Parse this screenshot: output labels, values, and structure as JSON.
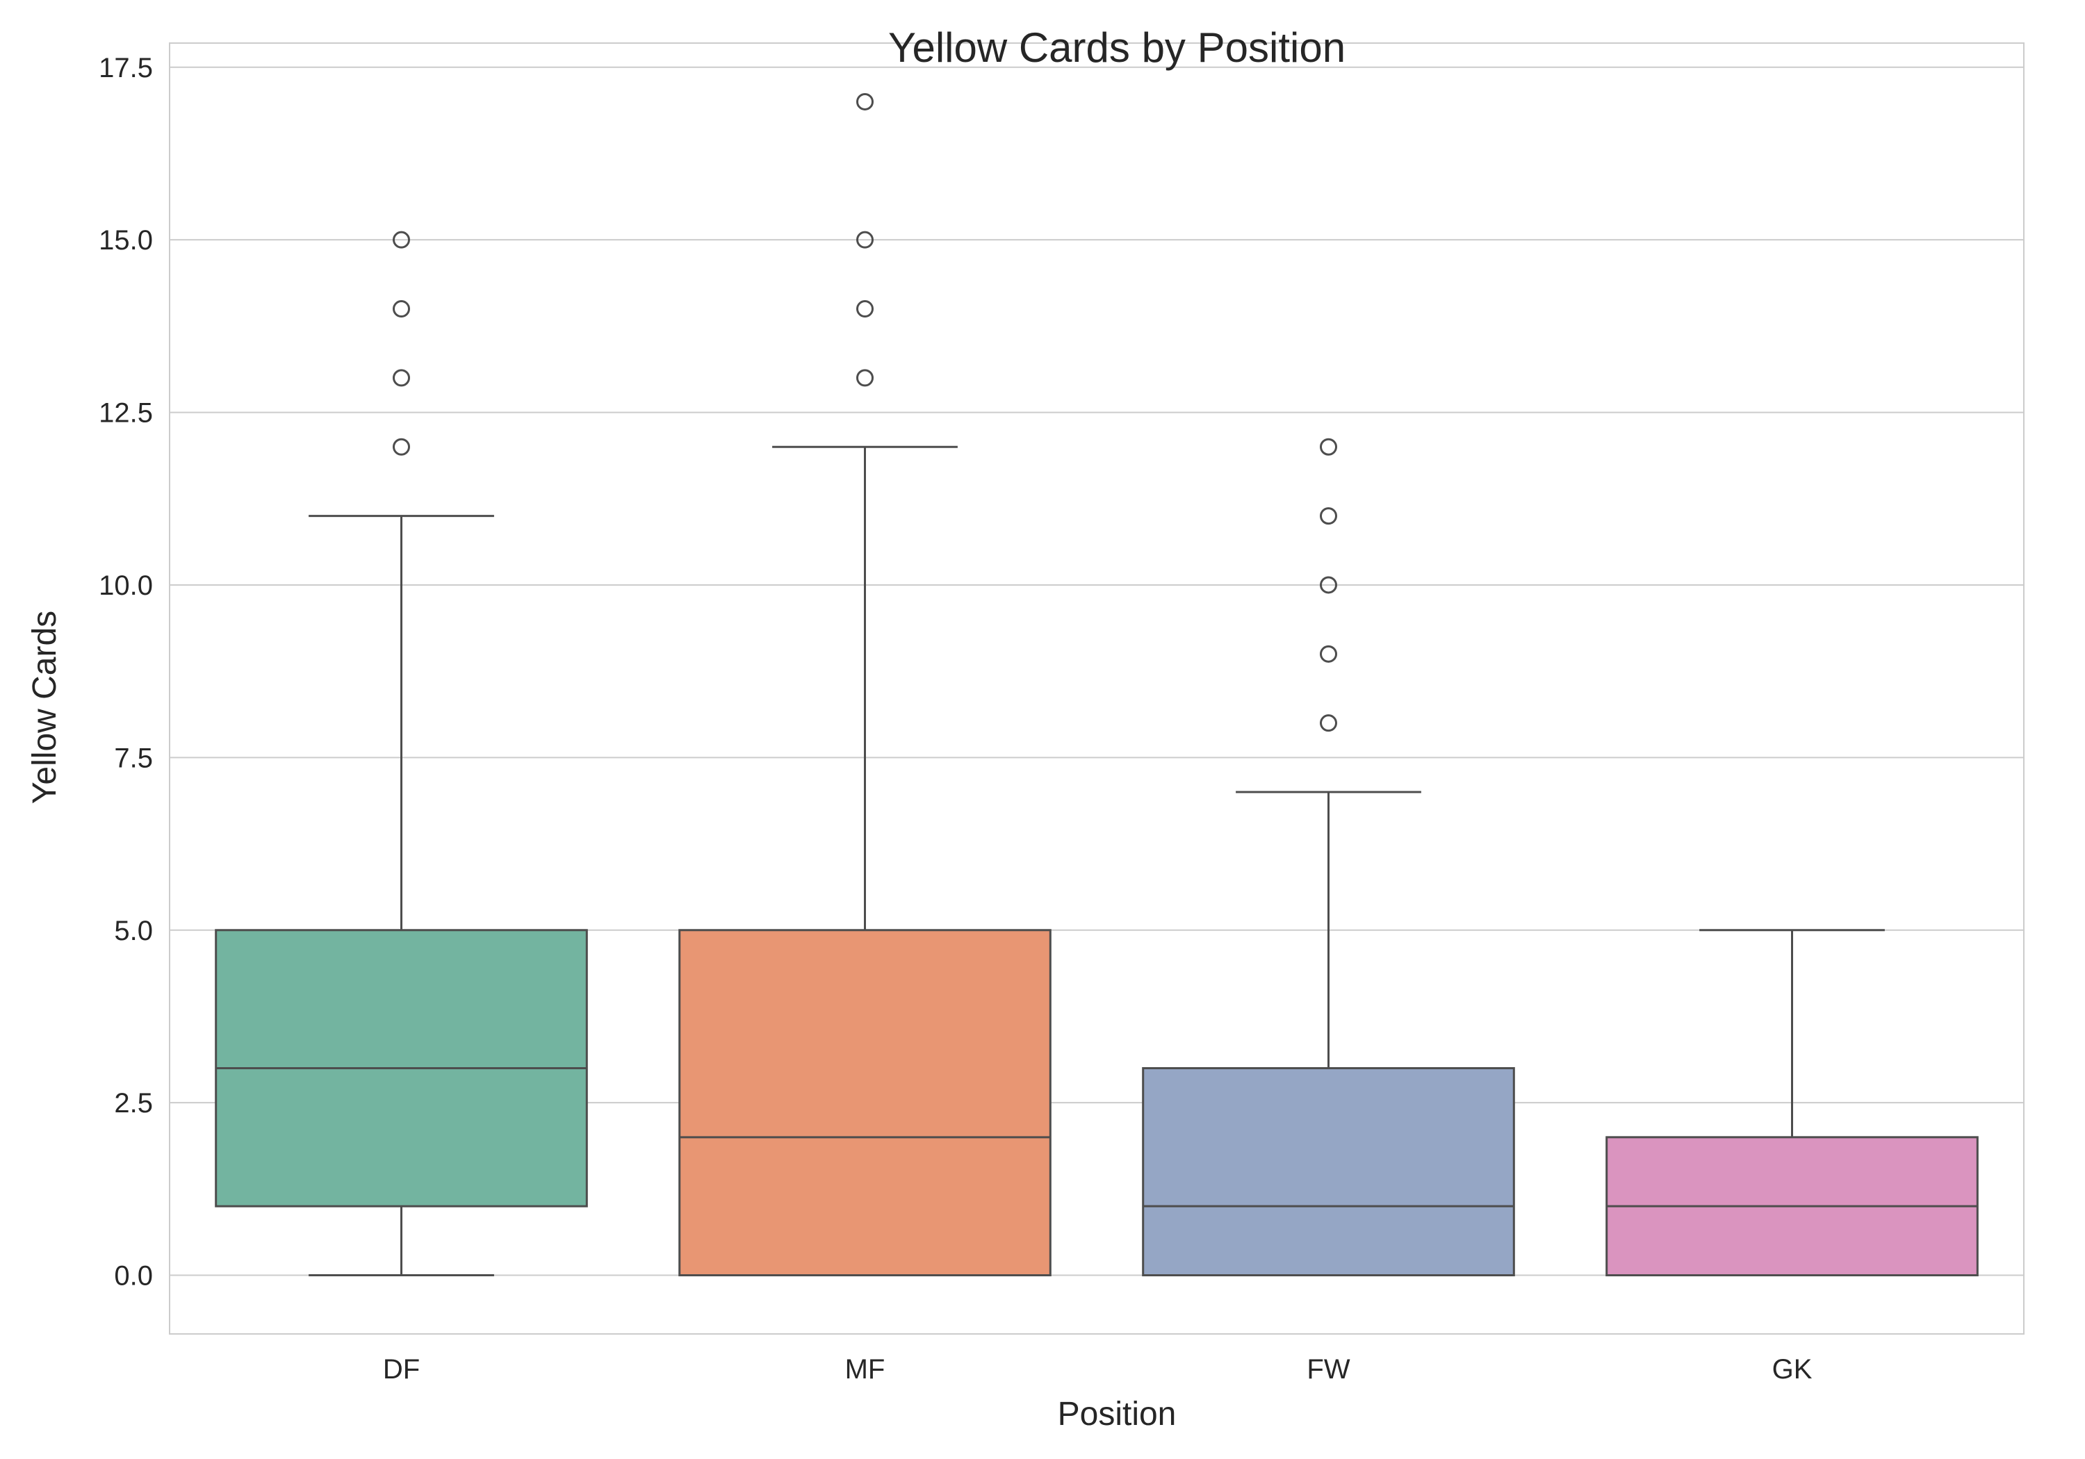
{
  "chart_data": {
    "type": "box",
    "title": "Yellow Cards by Position",
    "xlabel": "Position",
    "ylabel": "Yellow Cards",
    "ylim": [
      -0.85,
      17.85
    ],
    "yticks": [
      "0.0",
      "2.5",
      "5.0",
      "7.5",
      "10.0",
      "12.5",
      "15.0",
      "17.5"
    ],
    "grid": "horizontal",
    "categories": [
      "DF",
      "MF",
      "FW",
      "GK"
    ],
    "colors": [
      "#73b4a0",
      "#e89673",
      "#95a6c5",
      "#da94bf"
    ],
    "line_color": "#4d4d4d",
    "boxes": [
      {
        "label": "DF",
        "whisker_low": 0,
        "q1": 1,
        "median": 3,
        "q3": 5,
        "whisker_high": 11,
        "outliers": [
          12,
          13,
          14,
          15
        ]
      },
      {
        "label": "MF",
        "whisker_low": 0,
        "q1": 0,
        "median": 2,
        "q3": 5,
        "whisker_high": 12,
        "outliers": [
          13,
          14,
          15,
          17
        ]
      },
      {
        "label": "FW",
        "whisker_low": 0,
        "q1": 0,
        "median": 1,
        "q3": 3,
        "whisker_high": 7,
        "outliers": [
          8,
          9,
          10,
          11,
          12
        ]
      },
      {
        "label": "GK",
        "whisker_low": 0,
        "q1": 0,
        "median": 1,
        "q3": 2,
        "whisker_high": 5,
        "outliers": []
      }
    ]
  }
}
